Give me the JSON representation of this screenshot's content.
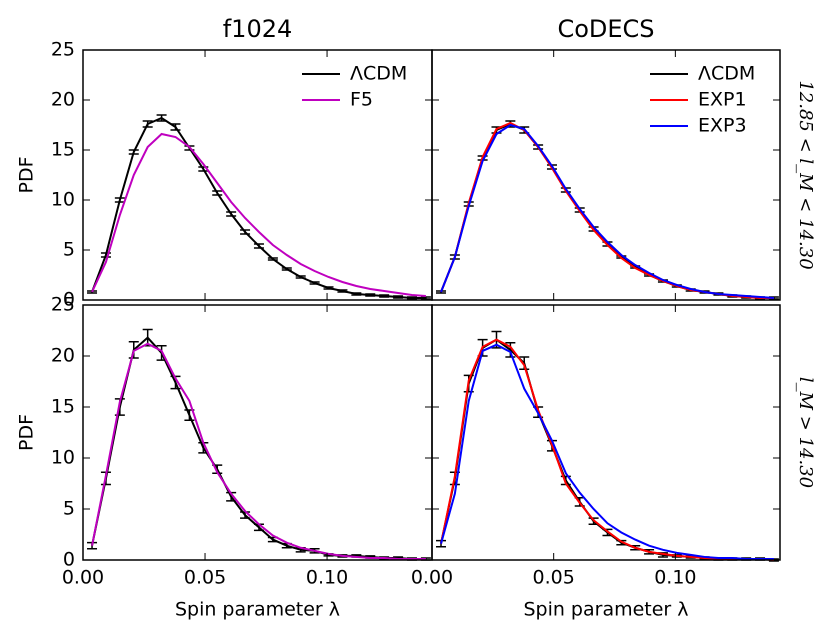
{
  "chart_data": [
    {
      "type": "line",
      "title": "f1024",
      "ylabel": "PDF",
      "x": [
        0.0037,
        0.0094,
        0.0151,
        0.0208,
        0.0265,
        0.0322,
        0.0379,
        0.0436,
        0.0493,
        0.055,
        0.0607,
        0.0664,
        0.0721,
        0.0778,
        0.0835,
        0.0892,
        0.0949,
        0.1006,
        0.1063,
        0.112,
        0.1177,
        0.1234,
        0.1291,
        0.1348,
        0.1405
      ],
      "series": [
        {
          "name": "ΛCDM",
          "color": "#000000",
          "values": [
            0.8,
            4.5,
            10.0,
            14.8,
            17.6,
            18.2,
            17.3,
            15.2,
            13.1,
            10.7,
            8.6,
            6.8,
            5.4,
            4.1,
            3.1,
            2.3,
            1.7,
            1.2,
            0.9,
            0.6,
            0.5,
            0.4,
            0.3,
            0.2,
            0.2
          ],
          "errors": [
            0.1,
            0.2,
            0.2,
            0.2,
            0.3,
            0.3,
            0.3,
            0.2,
            0.2,
            0.2,
            0.2,
            0.2,
            0.2,
            0.1,
            0.1,
            0.1,
            0.1,
            0.1,
            0.1,
            0.1,
            0.1,
            0.1,
            0.1,
            0.1,
            0.1
          ]
        },
        {
          "name": "F5",
          "color": "#bf00bf",
          "values": [
            0.8,
            3.8,
            8.5,
            12.5,
            15.3,
            16.6,
            16.3,
            15.3,
            13.6,
            11.7,
            9.8,
            8.2,
            6.8,
            5.5,
            4.5,
            3.6,
            2.9,
            2.3,
            1.8,
            1.4,
            1.1,
            0.9,
            0.7,
            0.5,
            0.4
          ]
        }
      ],
      "xlim": [
        0,
        0.143
      ],
      "xticks": [
        0,
        0.05,
        0.1
      ],
      "ylim": [
        0,
        25
      ],
      "yticks": [
        0,
        5,
        10,
        15,
        20,
        25
      ],
      "legend": "upper right"
    },
    {
      "type": "line",
      "title": "CoDECS",
      "annotation": "12.85 < l_M < 14.30",
      "x": [
        0.0037,
        0.0094,
        0.0151,
        0.0208,
        0.0265,
        0.0322,
        0.0379,
        0.0436,
        0.0493,
        0.055,
        0.0607,
        0.0664,
        0.0721,
        0.0778,
        0.0835,
        0.0892,
        0.0949,
        0.1006,
        0.1063,
        0.112,
        0.1177,
        0.1234,
        0.1291,
        0.1348,
        0.1405
      ],
      "series": [
        {
          "name": "ΛCDM",
          "color": "#000000",
          "values": [
            0.8,
            4.3,
            9.6,
            14.2,
            17.0,
            17.6,
            17.0,
            15.3,
            13.3,
            11.0,
            9.0,
            7.1,
            5.6,
            4.3,
            3.3,
            2.5,
            1.9,
            1.4,
            1.0,
            0.8,
            0.6,
            0.4,
            0.3,
            0.2,
            0.2
          ],
          "errors": [
            0.1,
            0.2,
            0.2,
            0.2,
            0.3,
            0.3,
            0.3,
            0.2,
            0.2,
            0.2,
            0.2,
            0.2,
            0.2,
            0.1,
            0.1,
            0.1,
            0.1,
            0.1,
            0.1,
            0.1,
            0.1,
            0.1,
            0.1,
            0.1,
            0.1
          ]
        },
        {
          "name": "EXP1",
          "color": "#ff0000",
          "values": [
            0.8,
            4.3,
            9.7,
            14.3,
            17.1,
            17.7,
            17.0,
            15.3,
            13.2,
            10.9,
            8.9,
            7.0,
            5.5,
            4.2,
            3.2,
            2.5,
            1.9,
            1.4,
            1.0,
            0.8,
            0.6,
            0.4,
            0.3,
            0.2,
            0.2
          ]
        },
        {
          "name": "EXP3",
          "color": "#0000ff",
          "values": [
            0.8,
            4.3,
            9.4,
            13.9,
            16.6,
            17.5,
            17.1,
            15.4,
            13.4,
            11.1,
            9.1,
            7.3,
            5.8,
            4.5,
            3.5,
            2.7,
            2.0,
            1.5,
            1.1,
            0.8,
            0.6,
            0.5,
            0.4,
            0.3,
            0.2
          ]
        }
      ],
      "xlim": [
        0,
        0.143
      ],
      "xticks": [
        0,
        0.05,
        0.1
      ],
      "ylim": [
        0,
        25
      ],
      "yticks": [
        0,
        5,
        10,
        15,
        20,
        25
      ],
      "legend": "upper right"
    },
    {
      "type": "line",
      "ylabel": "PDF",
      "xlabel": "Spin parameter λ",
      "x": [
        0.0037,
        0.0094,
        0.0151,
        0.0208,
        0.0265,
        0.0322,
        0.0379,
        0.0436,
        0.0493,
        0.055,
        0.0607,
        0.0664,
        0.0721,
        0.0778,
        0.0835,
        0.0892,
        0.0949,
        0.1006,
        0.1063,
        0.112,
        0.1177,
        0.1234,
        0.1291,
        0.1348,
        0.1405
      ],
      "series": [
        {
          "color": "#000000",
          "values": [
            1.4,
            8.0,
            15.0,
            20.6,
            21.8,
            20.3,
            17.4,
            14.2,
            11.0,
            8.9,
            6.2,
            4.4,
            3.2,
            2.0,
            1.4,
            1.0,
            0.9,
            0.5,
            0.4,
            0.4,
            0.3,
            0.2,
            0.2,
            0.1,
            0.1
          ],
          "errors": [
            0.3,
            0.6,
            0.8,
            0.8,
            0.8,
            0.7,
            0.6,
            0.5,
            0.5,
            0.4,
            0.4,
            0.3,
            0.3,
            0.2,
            0.2,
            0.2,
            0.2,
            0.1,
            0.1,
            0.1,
            0.1,
            0.1,
            0.1,
            0.1,
            0.1
          ]
        },
        {
          "color": "#bf00bf",
          "values": [
            1.4,
            8.3,
            15.5,
            20.5,
            21.2,
            20.5,
            17.8,
            15.6,
            11.5,
            8.6,
            6.5,
            4.8,
            3.5,
            2.4,
            1.7,
            1.2,
            0.9,
            0.6,
            0.4,
            0.3,
            0.2,
            0.2,
            0.1,
            0.1,
            0.1
          ]
        }
      ],
      "xlim": [
        0,
        0.143
      ],
      "xticks": [
        {
          "value": 0,
          "label": "0.00"
        },
        {
          "value": 0.05,
          "label": "0.05"
        },
        {
          "value": 0.1,
          "label": "0.10"
        }
      ],
      "ylim": [
        0,
        25
      ],
      "yticks": [
        0,
        5,
        10,
        15,
        20,
        25
      ]
    },
    {
      "type": "line",
      "xlabel": "Spin parameter λ",
      "annotation": "l_M > 14.30",
      "x": [
        0.0037,
        0.0094,
        0.0151,
        0.0208,
        0.0265,
        0.0322,
        0.0379,
        0.0436,
        0.0493,
        0.055,
        0.0607,
        0.0664,
        0.0721,
        0.0778,
        0.0835,
        0.0892,
        0.0949,
        0.1006,
        0.1063,
        0.112,
        0.1177,
        0.1234,
        0.1291,
        0.1348,
        0.1405
      ],
      "series": [
        {
          "color": "#000000",
          "values": [
            1.6,
            8.0,
            17.3,
            20.8,
            21.6,
            20.6,
            19.3,
            14.5,
            11.2,
            7.8,
            5.7,
            3.8,
            2.7,
            1.7,
            1.2,
            0.8,
            0.5,
            0.4,
            0.3,
            0.2,
            0.1,
            0.1,
            0.1,
            0.1,
            0.0
          ],
          "errors": [
            0.3,
            0.6,
            0.8,
            0.8,
            0.8,
            0.7,
            0.6,
            0.5,
            0.5,
            0.4,
            0.4,
            0.3,
            0.3,
            0.2,
            0.2,
            0.2,
            0.2,
            0.1,
            0.1,
            0.1,
            0.1,
            0.1,
            0.1,
            0.1,
            0.1
          ]
        },
        {
          "color": "#ff0000",
          "values": [
            1.6,
            8.2,
            17.6,
            20.9,
            21.6,
            20.9,
            19.1,
            14.7,
            11.3,
            7.5,
            5.6,
            3.9,
            2.8,
            1.8,
            1.2,
            0.8,
            0.6,
            0.4,
            0.3,
            0.2,
            0.1,
            0.1,
            0.1,
            0.1,
            0.0
          ]
        },
        {
          "color": "#0000ff",
          "values": [
            1.6,
            6.5,
            15.6,
            20.5,
            21.1,
            20.4,
            16.8,
            14.4,
            11.7,
            8.5,
            6.6,
            5.0,
            3.6,
            2.7,
            2.0,
            1.4,
            1.0,
            0.7,
            0.5,
            0.3,
            0.2,
            0.2,
            0.1,
            0.1,
            0.1
          ]
        }
      ],
      "xlim": [
        0,
        0.143
      ],
      "xticks": [
        {
          "value": 0,
          "label": "0.00"
        },
        {
          "value": 0.05,
          "label": "0.05"
        },
        {
          "value": 0.1,
          "label": "0.10"
        }
      ],
      "ylim": [
        0,
        25
      ],
      "yticks": [
        0,
        5,
        10,
        15,
        20,
        25
      ]
    }
  ]
}
